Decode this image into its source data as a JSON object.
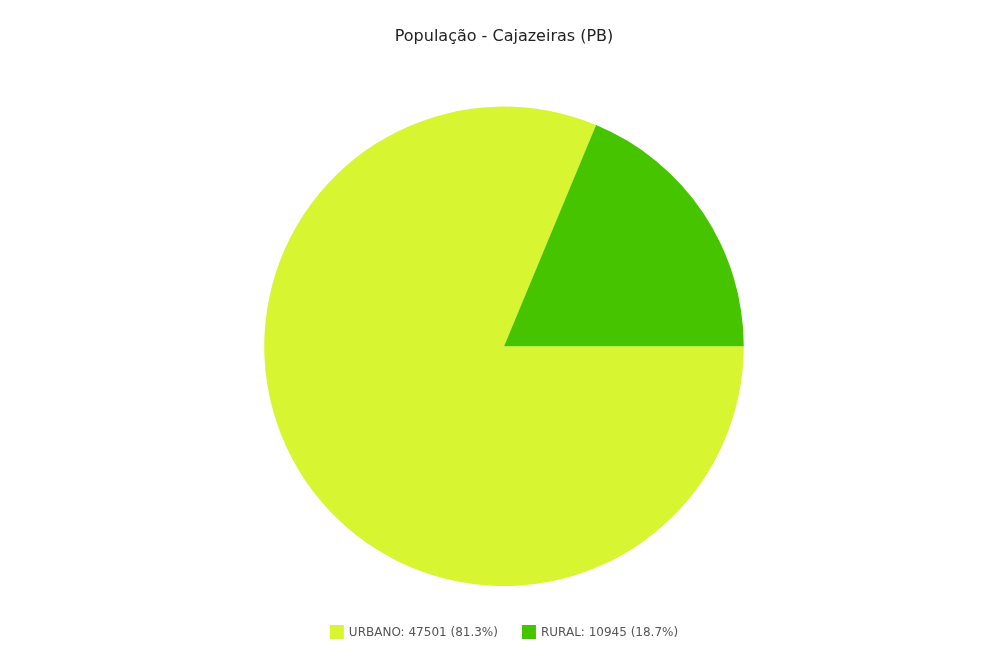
{
  "chart_data": {
    "type": "pie",
    "title": "População - Cajazeiras (PB)",
    "categories": [
      "URBANO",
      "RURAL"
    ],
    "values": [
      47501,
      10945
    ],
    "value_labels": [
      "47501 (81.3%)",
      "10945 (18.7%)"
    ],
    "colors": [
      "#d8f531",
      "#46c400"
    ],
    "legend": "bottom"
  }
}
